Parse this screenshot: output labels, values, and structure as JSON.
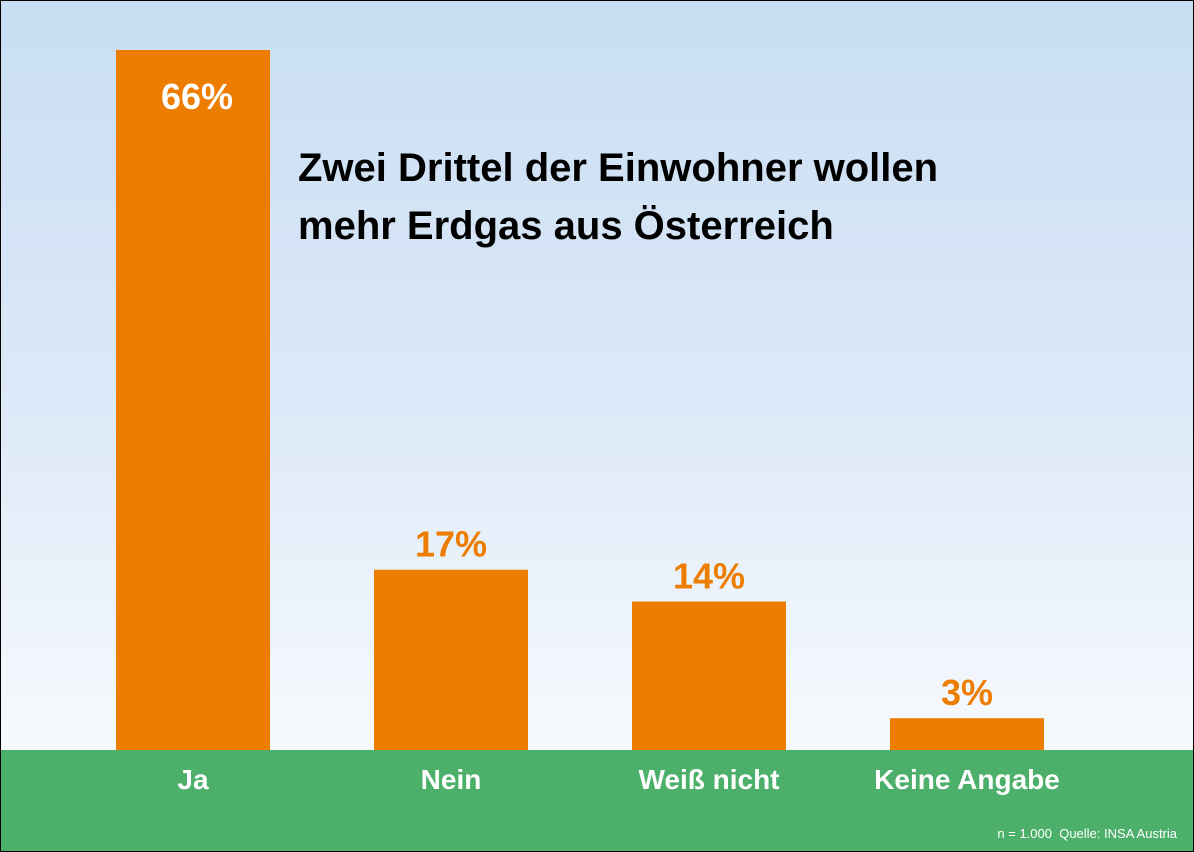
{
  "chart_data": {
    "type": "bar",
    "title_lines": [
      "Zwei Drittel der Einwohner wollen",
      "mehr Erdgas aus Österreich"
    ],
    "categories": [
      "Ja",
      "Nein",
      "Weiß nicht",
      "Keine Angabe"
    ],
    "values": [
      66,
      17,
      14,
      3
    ],
    "value_labels": [
      "66%",
      "17%",
      "14%",
      "3%"
    ],
    "ylim": [
      0,
      66
    ],
    "grid": false,
    "legend": "none",
    "colors": {
      "bar": "#ed7d00",
      "ground": "#4caf6a",
      "inside_label": "#ffffff",
      "outside_label": "#ed7d00"
    }
  },
  "source": {
    "sample": "n = 1.000",
    "text": "Quelle: INSA Austria"
  }
}
